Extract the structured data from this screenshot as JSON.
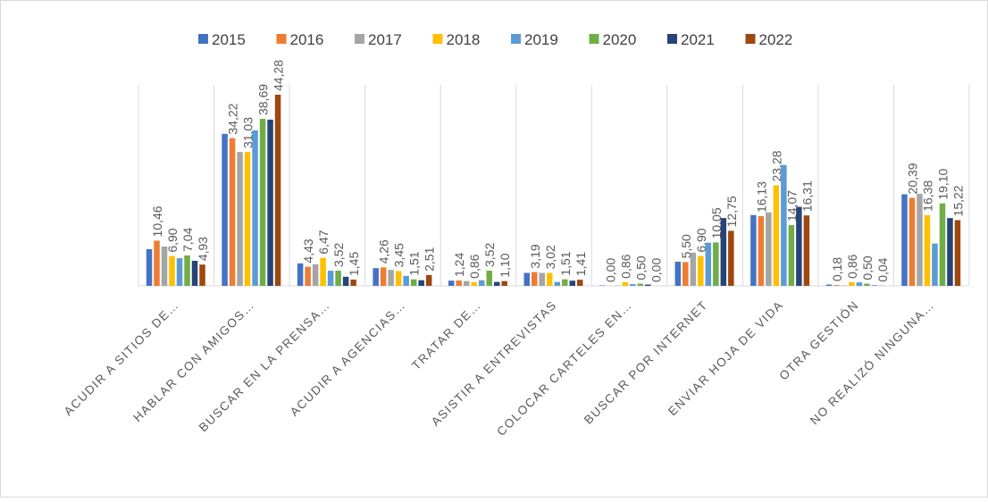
{
  "chart_data": {
    "type": "bar",
    "categories": [
      "ACUDIR A SITIOS DE…",
      "HABLAR CON AMIGOS…",
      "BUSCAR EN LA PRENSA…",
      "ACUDIR A AGENCIAS…",
      "TRATAR DE…",
      "ASISTIR A ENTREVISTAS",
      "COLOCAR CARTELES EN…",
      "BUSCAR POR INTERNET",
      "ENVIAR HOJA DE VIDA",
      "OTRA GESTIÓN",
      "NO REALIZÓ NINGUNA…"
    ],
    "series": [
      {
        "name": "2015",
        "color": "#4472c4",
        "values": [
          8.5,
          35.2,
          5.2,
          4.1,
          1.2,
          3.0,
          0.1,
          5.6,
          16.4,
          0.3,
          21.2
        ]
      },
      {
        "name": "2016",
        "color": "#ed7d31",
        "values": [
          10.46,
          34.22,
          4.43,
          4.26,
          1.24,
          3.19,
          0,
          5.5,
          16.13,
          0.18,
          20.39
        ],
        "value_labels": [
          "10,46",
          "34,22",
          "4,43",
          "4,26",
          "1,24",
          "3,19",
          "0,00",
          "5,50",
          "16,13",
          "0,18",
          "20,39"
        ]
      },
      {
        "name": "2017",
        "color": "#a5a5a5",
        "values": [
          9.1,
          31.0,
          5.0,
          3.7,
          1.1,
          3.0,
          0.1,
          7.7,
          17.0,
          0.1,
          21.3
        ]
      },
      {
        "name": "2018",
        "color": "#ffc000",
        "values": [
          6.9,
          31.03,
          6.47,
          3.45,
          0.86,
          3.02,
          0.86,
          6.9,
          23.28,
          0.86,
          16.38
        ],
        "value_labels": [
          "6,90",
          "31,03",
          "6,47",
          "3,45",
          "0,86",
          "3,02",
          "0,86",
          "6,90",
          "23,28",
          "0,86",
          "16,38"
        ]
      },
      {
        "name": "2019",
        "color": "#5b9bd5",
        "values": [
          6.4,
          36.0,
          3.5,
          2.3,
          1.3,
          0.9,
          0.4,
          10.0,
          28.0,
          0.8,
          9.8
        ]
      },
      {
        "name": "2020",
        "color": "#70ad47",
        "values": [
          7.04,
          38.69,
          3.52,
          1.51,
          3.52,
          1.51,
          0.5,
          10.05,
          14.07,
          0.5,
          19.1
        ],
        "value_labels": [
          "7,04",
          "38,69",
          "3,52",
          "1,51",
          "3,52",
          "1,51",
          "0,50",
          "10,05",
          "14,07",
          "0,50",
          "19,10"
        ]
      },
      {
        "name": "2021",
        "color": "#264478",
        "values": [
          5.8,
          38.5,
          2.1,
          1.3,
          0.9,
          1.2,
          0.3,
          15.7,
          18.3,
          0.1,
          15.7
        ]
      },
      {
        "name": "2022",
        "color": "#9e480e",
        "values": [
          4.93,
          44.28,
          1.45,
          2.51,
          1.1,
          1.41,
          0,
          12.75,
          16.31,
          0.04,
          15.22
        ],
        "value_labels": [
          "4,93",
          "44,28",
          "1,45",
          "2,51",
          "1,10",
          "1,41",
          "0,00",
          "12,75",
          "16,31",
          "0,04",
          "15,22"
        ]
      }
    ]
  }
}
